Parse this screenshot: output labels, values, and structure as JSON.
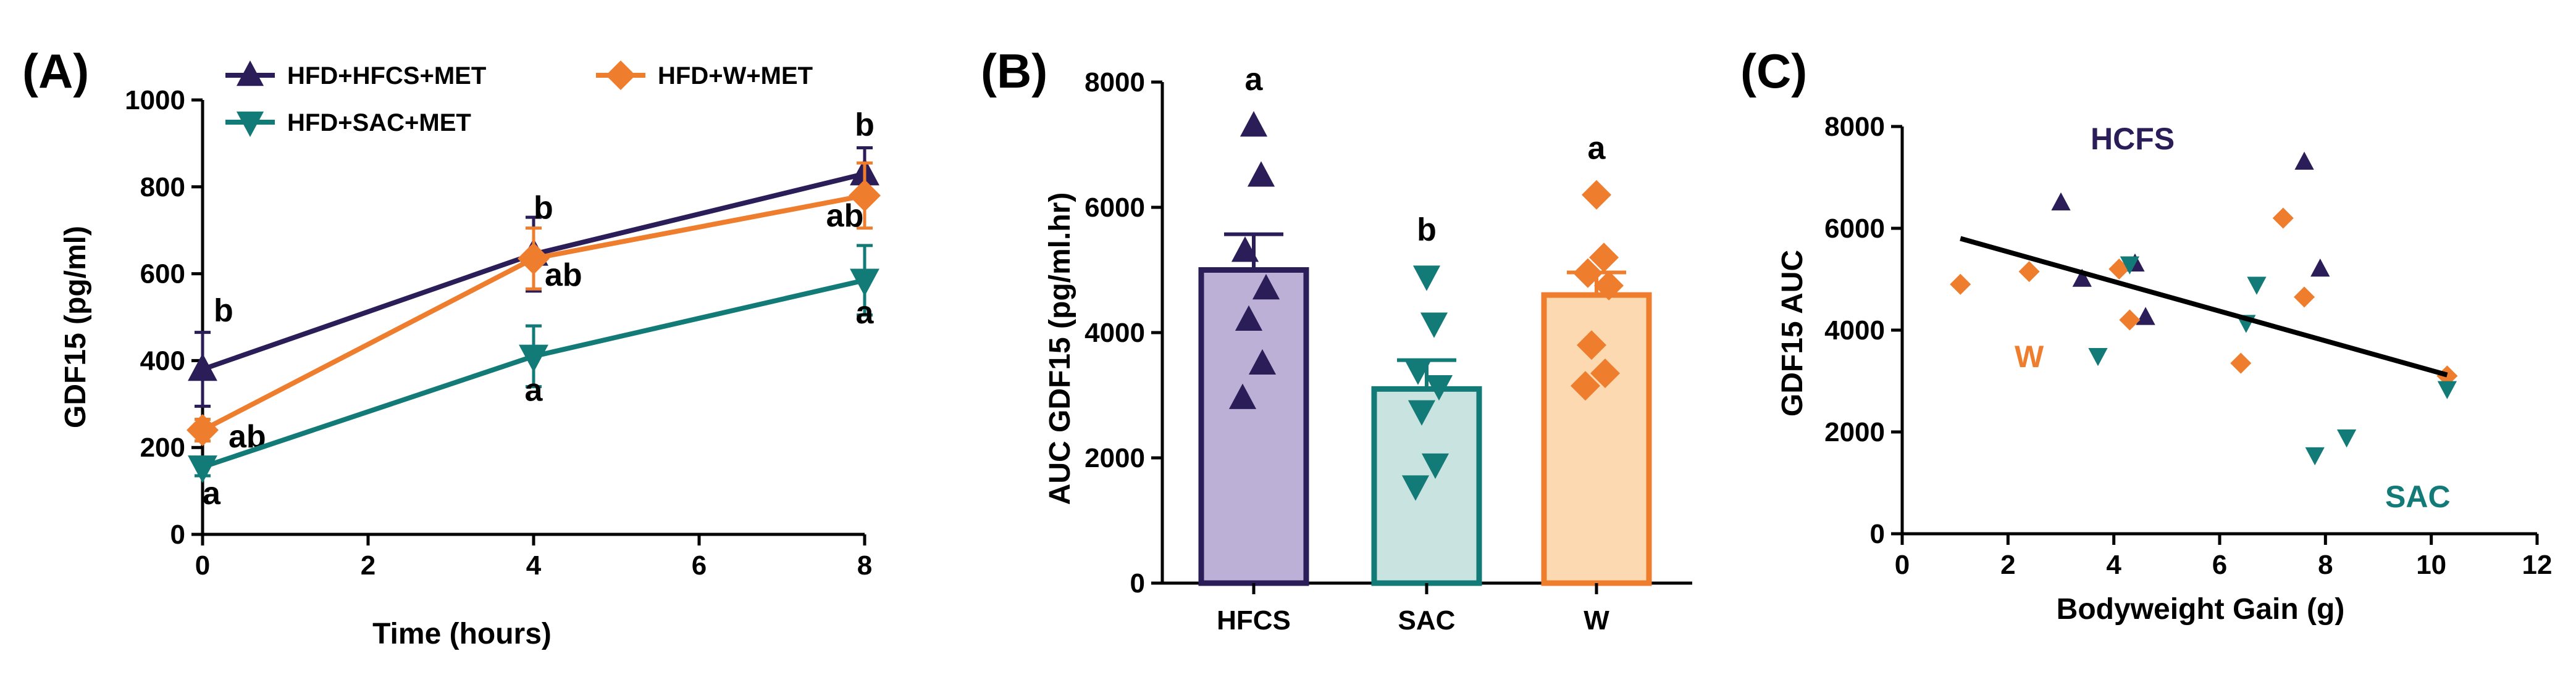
{
  "colors": {
    "hfcs": "#2b1d58",
    "sac": "#137b77",
    "w": "#ee7d2d",
    "hfcs_fill": "#bcb0d6",
    "sac_fill": "#c9e3e0",
    "w_fill": "#fdd9b1",
    "axis": "#000000",
    "regression": "#000000"
  },
  "chart_data": [
    {
      "id": "A",
      "type": "line",
      "panel_label": "(A)",
      "xlabel": "Time (hours)",
      "ylabel": "GDF15 (pg/ml)",
      "xlim": [
        0,
        8
      ],
      "ylim": [
        0,
        1000
      ],
      "xticks": [
        0,
        2,
        4,
        6,
        8
      ],
      "yticks": [
        0,
        200,
        400,
        600,
        800,
        1000
      ],
      "xtick_labels": [
        "0",
        "2",
        "4",
        "6",
        "8"
      ],
      "ytick_labels": [
        "0",
        "200",
        "400",
        "600",
        "800",
        "1000"
      ],
      "legend": [
        "HFD+HFCS+MET",
        "HFD+W+MET",
        "HFD+SAC+MET"
      ],
      "series": [
        {
          "name": "HFD+HFCS+MET",
          "key": "hfcs",
          "marker": "triangle-up",
          "x": [
            0,
            4,
            8
          ],
          "y": [
            380,
            645,
            830
          ],
          "err": [
            85,
            85,
            60
          ],
          "letters": [
            "b",
            "b",
            "b"
          ]
        },
        {
          "name": "HFD+W+MET",
          "key": "w",
          "marker": "diamond",
          "x": [
            0,
            4,
            8
          ],
          "y": [
            240,
            635,
            780
          ],
          "err": [
            25,
            70,
            75
          ],
          "letters": [
            "ab",
            "ab",
            "ab"
          ]
        },
        {
          "name": "HFD+SAC+MET",
          "key": "sac",
          "marker": "triangle-down",
          "x": [
            0,
            4,
            8
          ],
          "y": [
            155,
            410,
            585
          ],
          "err": [
            20,
            70,
            80
          ],
          "letters": [
            "a",
            "a",
            "a"
          ]
        }
      ]
    },
    {
      "id": "B",
      "type": "bar",
      "panel_label": "(B)",
      "ylabel": "AUC GDF15 (pg/ml.hr)",
      "xlabel": "",
      "ylim": [
        0,
        8000
      ],
      "yticks": [
        0,
        2000,
        4000,
        6000,
        8000
      ],
      "ytick_labels": [
        "0",
        "2000",
        "4000",
        "6000",
        "8000"
      ],
      "categories": [
        "HFCS",
        "SAC",
        "W"
      ],
      "values": [
        5000,
        3100,
        4600
      ],
      "sem": [
        570,
        460,
        360
      ],
      "letters": [
        "a",
        "b",
        "a"
      ],
      "points": [
        [
          7300,
          6500,
          5300,
          4700,
          4200,
          3500,
          2950
        ],
        [
          4900,
          4150,
          3400,
          3150,
          2750,
          1900,
          1550
        ],
        [
          6200,
          5200,
          4950,
          4750,
          3800,
          3350,
          3150
        ]
      ]
    },
    {
      "id": "C",
      "type": "scatter",
      "panel_label": "(C)",
      "xlabel": "Bodyweight Gain (g)",
      "ylabel": "GDF15 AUC",
      "xlim": [
        0,
        12
      ],
      "ylim": [
        0,
        8000
      ],
      "xticks": [
        0,
        2,
        4,
        6,
        8,
        10,
        12
      ],
      "yticks": [
        0,
        2000,
        4000,
        6000,
        8000
      ],
      "xtick_labels": [
        "0",
        "2",
        "4",
        "6",
        "8",
        "10",
        "12"
      ],
      "ytick_labels": [
        "0",
        "2000",
        "4000",
        "6000",
        "8000"
      ],
      "regression": {
        "x": [
          1.1,
          10.3
        ],
        "y": [
          5800,
          3120
        ]
      },
      "group_labels": [
        "HCFS",
        "W",
        "SAC"
      ],
      "series": [
        {
          "name": "HCFS",
          "key": "hfcs",
          "marker": "triangle-up",
          "x": [
            3.0,
            3.4,
            4.4,
            4.6,
            7.6,
            7.9
          ],
          "y": [
            6500,
            5000,
            5300,
            4250,
            7300,
            5200
          ]
        },
        {
          "name": "W",
          "key": "w",
          "marker": "diamond",
          "x": [
            1.1,
            2.4,
            4.1,
            4.3,
            6.4,
            7.2,
            7.6,
            10.3
          ],
          "y": [
            4900,
            5150,
            5200,
            4200,
            3350,
            6200,
            4650,
            3100
          ]
        },
        {
          "name": "SAC",
          "key": "sac",
          "marker": "triangle-down",
          "x": [
            3.7,
            4.3,
            6.5,
            6.7,
            7.8,
            8.4,
            10.3
          ],
          "y": [
            3500,
            5300,
            4150,
            4900,
            1550,
            1900,
            2850
          ]
        }
      ]
    }
  ]
}
